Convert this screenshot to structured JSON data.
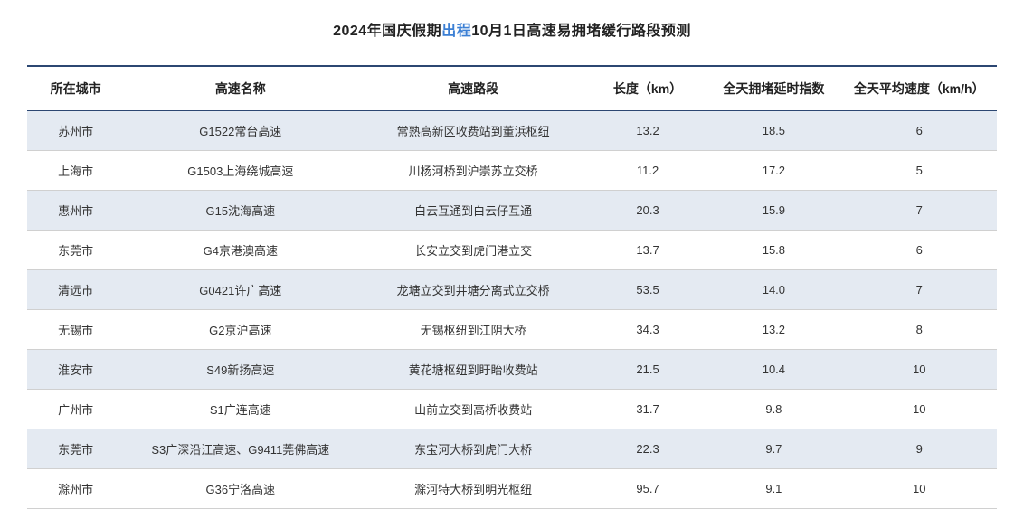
{
  "title": {
    "prefix": "2024年国庆假期",
    "highlight": "出程",
    "suffix": "10月1日高速易拥堵缓行路段预测"
  },
  "table": {
    "type": "table",
    "header_bg": "#ffffff",
    "row_alt_bg": "#e4eaf2",
    "row_bg": "#ffffff",
    "border_top_color": "#2c4772",
    "row_border_color": "#d0d0d0",
    "columns": [
      {
        "label": "所在城市",
        "class": "col-city"
      },
      {
        "label": "高速名称",
        "class": "col-highway"
      },
      {
        "label": "高速路段",
        "class": "col-section"
      },
      {
        "label": "长度（km）",
        "class": "col-length"
      },
      {
        "label": "全天拥堵延时指数",
        "class": "col-index"
      },
      {
        "label": "全天平均速度（km/h）",
        "class": "col-speed"
      }
    ],
    "rows": [
      {
        "city": "苏州市",
        "highway": "G1522常台高速",
        "section": "常熟高新区收费站到董浜枢纽",
        "length": "13.2",
        "index": "18.5",
        "speed": "6",
        "alt": true
      },
      {
        "city": "上海市",
        "highway": "G1503上海绕城高速",
        "section": "川杨河桥到沪崇苏立交桥",
        "length": "11.2",
        "index": "17.2",
        "speed": "5",
        "alt": false
      },
      {
        "city": "惠州市",
        "highway": "G15沈海高速",
        "section": "白云互通到白云仔互通",
        "length": "20.3",
        "index": "15.9",
        "speed": "7",
        "alt": true
      },
      {
        "city": "东莞市",
        "highway": "G4京港澳高速",
        "section": "长安立交到虎门港立交",
        "length": "13.7",
        "index": "15.8",
        "speed": "6",
        "alt": false
      },
      {
        "city": "清远市",
        "highway": "G0421许广高速",
        "section": "龙塘立交到井塘分离式立交桥",
        "length": "53.5",
        "index": "14.0",
        "speed": "7",
        "alt": true
      },
      {
        "city": "无锡市",
        "highway": "G2京沪高速",
        "section": "无锡枢纽到江阴大桥",
        "length": "34.3",
        "index": "13.2",
        "speed": "8",
        "alt": false
      },
      {
        "city": "淮安市",
        "highway": "S49新扬高速",
        "section": "黄花塘枢纽到盱眙收费站",
        "length": "21.5",
        "index": "10.4",
        "speed": "10",
        "alt": true
      },
      {
        "city": "广州市",
        "highway": "S1广连高速",
        "section": "山前立交到高桥收费站",
        "length": "31.7",
        "index": "9.8",
        "speed": "10",
        "alt": false
      },
      {
        "city": "东莞市",
        "highway": "S3广深沿江高速、G9411莞佛高速",
        "section": "东宝河大桥到虎门大桥",
        "length": "22.3",
        "index": "9.7",
        "speed": "9",
        "alt": true
      },
      {
        "city": "滁州市",
        "highway": "G36宁洛高速",
        "section": "滁河特大桥到明光枢纽",
        "length": "95.7",
        "index": "9.1",
        "speed": "10",
        "alt": false
      }
    ]
  },
  "colors": {
    "title_text": "#222222",
    "highlight_text": "#3b7fd4",
    "body_text": "#333333",
    "background": "#ffffff"
  },
  "typography": {
    "title_fontsize": 16,
    "header_fontsize": 14,
    "cell_fontsize": 13
  }
}
